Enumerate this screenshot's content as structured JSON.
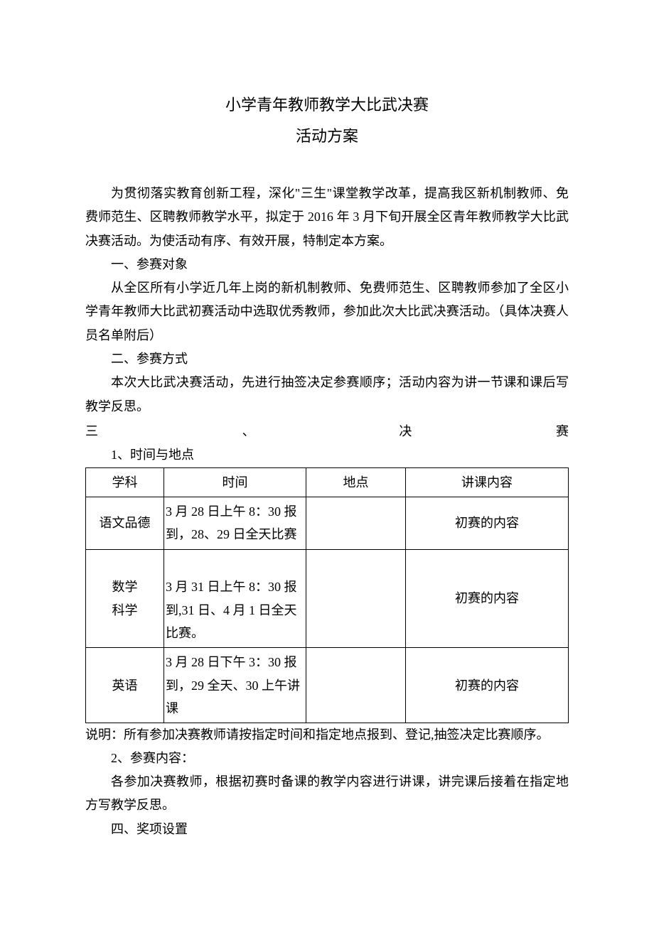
{
  "title": "小学青年教师教学大比武决赛",
  "subtitle": "活动方案",
  "intro": "为贯彻落实教育创新工程，深化\"三生\"课堂教学改革，提高我区新机制教师、免费师范生、区聘教师教学水平，拟定于 2016 年 3 月下旬开展全区青年教师教学大比武决赛活动。为使活动有序、有效开展，特制定本方案。",
  "section1": {
    "heading": "一、参赛对象",
    "body": "从全区所有小学近几年上岗的新机制教师、免费师范生、区聘教师参加了全区小学青年教师大比武初赛活动中选取优秀教师，参加此次大比武决赛活动。（具体决赛人员名单附后）"
  },
  "section2": {
    "heading": "二、参赛方式",
    "body": "本次大比武决赛活动，先进行抽签决定参赛顺序；活动内容为讲一节课和课后写教学反思。"
  },
  "section3": {
    "h_char1": "三",
    "h_char2": "、",
    "h_char3": "决",
    "h_char4": "赛",
    "sub1": "1、时间与地点",
    "table": {
      "headers": {
        "subject": "学科",
        "time": "时间",
        "location": "地点",
        "content": "讲课内容"
      },
      "rows": [
        {
          "subject": "语文品德",
          "time": "3 月 28 日上午 8：30 报到，28、29 日全天比赛",
          "location": "",
          "content": "初赛的内容"
        },
        {
          "subject": "数学\n科学",
          "time": "\n3 月 31 日上午 8：30 报到,31 日、4 月 1 日全天比赛。",
          "location": "",
          "content": "初赛的内容"
        },
        {
          "subject": "英语",
          "time": "3 月 28 日下午 3：30 报到，29 全天、30 上午讲课",
          "location": "",
          "content": "初赛的内容"
        }
      ]
    },
    "note": "说明：所有参加决赛教师请按指定时间和指定地点报到、登记,抽签决定比赛顺序。",
    "sub2": "2、参赛内容：",
    "body2": "各参加决赛教师，根据初赛时备课的教学内容进行讲课，讲完课后接着在指定地方写教学反思。"
  },
  "section4": {
    "heading": "四、奖项设置"
  }
}
